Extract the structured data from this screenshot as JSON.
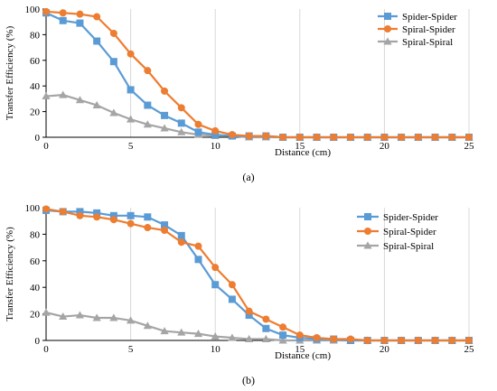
{
  "chart_data": [
    {
      "type": "line",
      "panel_label": "(a)",
      "xlabel": "Distance (cm)",
      "ylabel": "Transfer Efficiency (%)",
      "xlim": [
        0,
        25
      ],
      "ylim": [
        0,
        100
      ],
      "xticks": [
        "0",
        "5",
        "10",
        "15",
        "20",
        "25"
      ],
      "yticks": [
        "0",
        "20",
        "40",
        "60",
        "80",
        "100"
      ],
      "grid": "vertical",
      "legend_position": "top-right",
      "x": [
        0,
        1,
        2,
        3,
        4,
        5,
        6,
        7,
        8,
        9,
        10,
        11,
        12,
        13,
        14,
        15,
        16,
        17,
        18,
        19,
        20,
        21,
        22,
        23,
        24,
        25
      ],
      "series": [
        {
          "name": "Spider-Spider",
          "color": "#5B9BD5",
          "marker": "square",
          "values": [
            97,
            91,
            89,
            75,
            59,
            37,
            25,
            17,
            11,
            4,
            2,
            1,
            1,
            1,
            0,
            0,
            0,
            0,
            0,
            0,
            0,
            0,
            0,
            0,
            0,
            0
          ]
        },
        {
          "name": "Spiral-Spider",
          "color": "#ED7D31",
          "marker": "circle",
          "values": [
            98,
            97,
            96,
            94,
            81,
            65,
            52,
            36,
            23,
            10,
            5,
            2,
            1,
            1,
            0,
            0,
            0,
            0,
            0,
            0,
            0,
            0,
            0,
            0,
            0,
            0
          ]
        },
        {
          "name": "Spiral-Spiral",
          "color": "#A5A5A5",
          "marker": "triangle",
          "values": [
            32,
            33,
            29,
            25,
            19,
            14,
            10,
            7,
            4,
            2,
            1,
            1,
            0,
            0,
            0,
            0,
            0,
            0,
            0,
            0,
            0,
            0,
            0,
            0,
            0,
            0
          ]
        }
      ]
    },
    {
      "type": "line",
      "panel_label": "(b)",
      "xlabel": "Distance (cm)",
      "ylabel": "Transfer Efficiency   (%)",
      "xlim": [
        0,
        25
      ],
      "ylim": [
        0,
        100
      ],
      "xticks": [
        "0",
        "5",
        "10",
        "15",
        "20",
        "25"
      ],
      "yticks": [
        "0",
        "20",
        "40",
        "60",
        "80",
        "100"
      ],
      "grid": "vertical",
      "legend_position": "top-right",
      "x": [
        0,
        1,
        2,
        3,
        4,
        5,
        6,
        7,
        8,
        9,
        10,
        11,
        12,
        13,
        14,
        15,
        16,
        17,
        18,
        19,
        20,
        21,
        22,
        23,
        24,
        25
      ],
      "series": [
        {
          "name": "Spider-Spider",
          "color": "#5B9BD5",
          "marker": "square",
          "values": [
            98,
            97,
            97,
            96,
            94,
            94,
            93,
            87,
            79,
            61,
            42,
            31,
            19,
            9,
            4,
            2,
            1,
            1,
            0,
            0,
            0,
            0,
            0,
            0,
            0,
            0
          ]
        },
        {
          "name": "Spiral-Spider",
          "color": "#ED7D31",
          "marker": "circle",
          "values": [
            99,
            97,
            94,
            93,
            91,
            88,
            85,
            83,
            74,
            71,
            55,
            42,
            22,
            16,
            10,
            4,
            2,
            1,
            1,
            0,
            0,
            0,
            0,
            0,
            0,
            0
          ]
        },
        {
          "name": "Spiral-Spiral",
          "color": "#A5A5A5",
          "marker": "triangle",
          "values": [
            21,
            18,
            19,
            17,
            17,
            15,
            11,
            7,
            6,
            5,
            3,
            2,
            1,
            1,
            0,
            0,
            0,
            0,
            0,
            0,
            0,
            0,
            0,
            0,
            0,
            0
          ]
        }
      ]
    }
  ]
}
